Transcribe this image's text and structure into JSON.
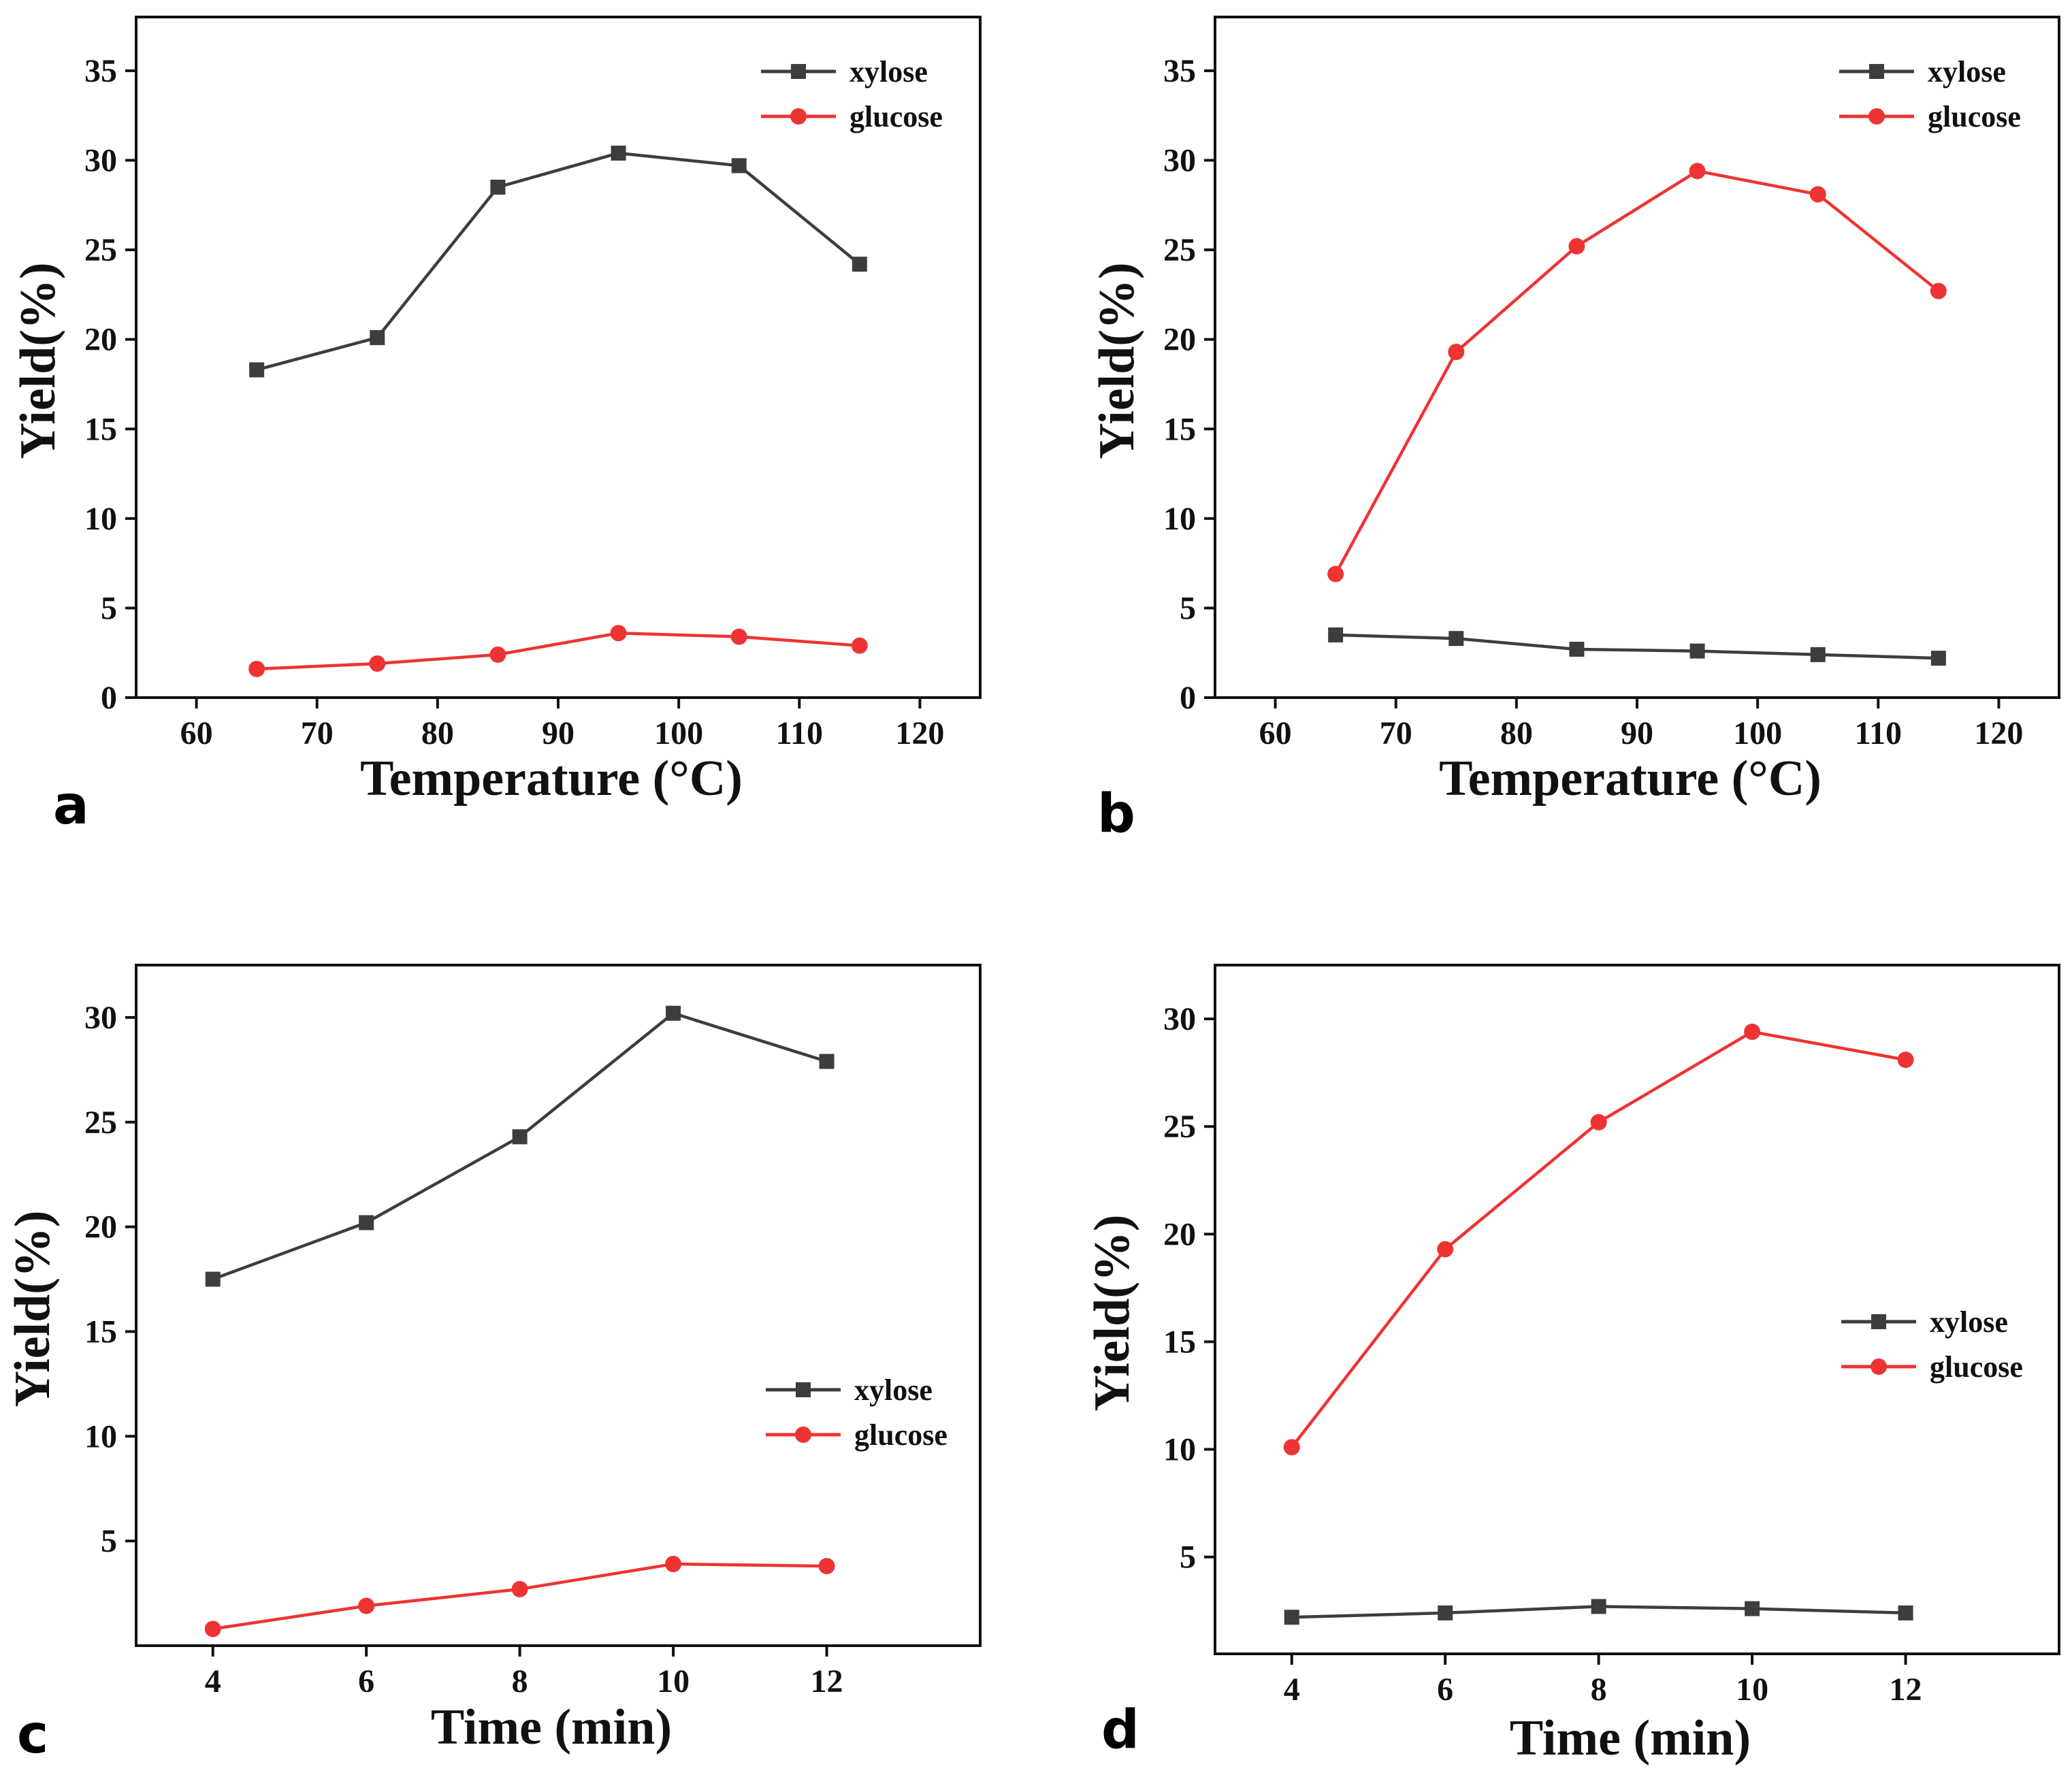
{
  "colors": {
    "xylose": "#3d3d3d",
    "glucose": "#ee3333",
    "axis": "#111111"
  },
  "chart_data": [
    {
      "panel": "a",
      "type": "line",
      "xlabel": "Temperature (°C)",
      "ylabel": "Yield(%)",
      "xlim": [
        55,
        125
      ],
      "ylim": [
        0,
        38
      ],
      "xticks": [
        60,
        70,
        80,
        90,
        100,
        110,
        120
      ],
      "yticks": [
        0,
        5,
        10,
        15,
        20,
        25,
        30,
        35
      ],
      "legend_position": "top-right",
      "x": [
        65,
        75,
        85,
        95,
        105,
        115
      ],
      "series": [
        {
          "name": "xylose",
          "marker": "square",
          "values": [
            18.3,
            20.1,
            28.5,
            30.4,
            29.7,
            24.2
          ]
        },
        {
          "name": "glucose",
          "marker": "circle",
          "values": [
            1.6,
            1.9,
            2.4,
            3.6,
            3.4,
            2.9
          ]
        }
      ]
    },
    {
      "panel": "b",
      "type": "line",
      "xlabel": "Temperature (°C)",
      "ylabel": "Yield(%)",
      "xlim": [
        55,
        125
      ],
      "ylim": [
        0,
        38
      ],
      "xticks": [
        60,
        70,
        80,
        90,
        100,
        110,
        120
      ],
      "yticks": [
        0,
        5,
        10,
        15,
        20,
        25,
        30,
        35
      ],
      "legend_position": "top-right",
      "x": [
        65,
        75,
        85,
        95,
        105,
        115
      ],
      "series": [
        {
          "name": "xylose",
          "marker": "square",
          "values": [
            3.5,
            3.3,
            2.7,
            2.6,
            2.4,
            2.2
          ]
        },
        {
          "name": "glucose",
          "marker": "circle",
          "values": [
            6.9,
            19.3,
            25.2,
            29.4,
            28.1,
            22.7
          ]
        }
      ]
    },
    {
      "panel": "c",
      "type": "line",
      "xlabel": "Time (min)",
      "ylabel": "Yield(%)",
      "xlim": [
        3,
        14
      ],
      "ylim": [
        0,
        32.5
      ],
      "xticks": [
        4,
        6,
        8,
        10,
        12
      ],
      "yticks": [
        5,
        10,
        15,
        20,
        25,
        30
      ],
      "legend_position": "center-right",
      "x": [
        4,
        6,
        8,
        10,
        12
      ],
      "series": [
        {
          "name": "xylose",
          "marker": "square",
          "values": [
            17.5,
            20.2,
            24.3,
            30.2,
            27.9
          ]
        },
        {
          "name": "glucose",
          "marker": "circle",
          "values": [
            0.8,
            1.9,
            2.7,
            3.9,
            3.8
          ]
        }
      ]
    },
    {
      "panel": "d",
      "type": "line",
      "xlabel": "Time (min)",
      "ylabel": "Yield(%)",
      "xlim": [
        3,
        14
      ],
      "ylim": [
        0.5,
        32.5
      ],
      "xticks": [
        4,
        6,
        8,
        10,
        12
      ],
      "yticks": [
        5,
        10,
        15,
        20,
        25,
        30
      ],
      "legend_position": "center-right",
      "x": [
        4,
        6,
        8,
        10,
        12
      ],
      "series": [
        {
          "name": "xylose",
          "marker": "square",
          "values": [
            2.2,
            2.4,
            2.7,
            2.6,
            2.4
          ]
        },
        {
          "name": "glucose",
          "marker": "circle",
          "values": [
            10.1,
            19.3,
            25.2,
            29.4,
            28.1
          ]
        }
      ]
    }
  ]
}
